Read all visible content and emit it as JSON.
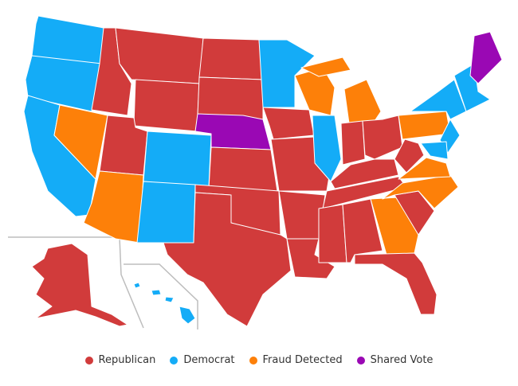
{
  "legend": {
    "items": [
      {
        "label": "Republican",
        "color": "#d13b3b"
      },
      {
        "label": "Democrat",
        "color": "#14acf7"
      },
      {
        "label": "Fraud Detected",
        "color": "#fd8009"
      },
      {
        "label": "Shared Vote",
        "color": "#9a08b4"
      }
    ]
  }
}
